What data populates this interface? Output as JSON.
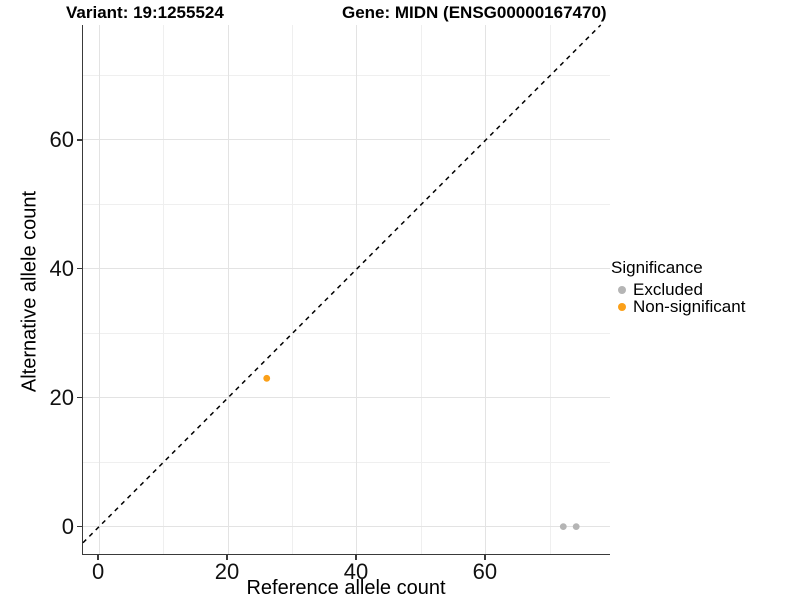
{
  "titles": {
    "variant": "Variant: 19:1255524",
    "gene": "Gene: MIDN (ENSG00000167470)"
  },
  "axes": {
    "x": {
      "label": "Reference allele count",
      "ticks": [
        0,
        20,
        40,
        60
      ],
      "major_gridlines": [
        0,
        20,
        40,
        60
      ],
      "minor_gridlines": [
        10,
        30,
        50,
        70
      ],
      "range": [
        -2.5,
        79.4
      ]
    },
    "y": {
      "label": "Alternative allele count",
      "ticks": [
        0,
        20,
        40,
        60
      ],
      "major_gridlines": [
        0,
        20,
        40,
        60
      ],
      "minor_gridlines": [
        10,
        30,
        50,
        70
      ],
      "range": [
        -4.4,
        77.8
      ]
    }
  },
  "legend": {
    "title": "Significance",
    "items": [
      {
        "label": "Excluded",
        "color": "#b5b5b5"
      },
      {
        "label": "Non-significant",
        "color": "#fba019"
      }
    ]
  },
  "chart_data": {
    "type": "scatter",
    "title": "Variant: 19:1255524 — Gene: MIDN (ENSG00000167470)",
    "xlabel": "Reference allele count",
    "ylabel": "Alternative allele count",
    "xlim": [
      -2.5,
      79.4
    ],
    "ylim": [
      -4.4,
      77.8
    ],
    "grid": true,
    "legend_position": "right",
    "series": [
      {
        "name": "Excluded",
        "color": "#b5b5b5",
        "points": [
          [
            72,
            0
          ],
          [
            74,
            0
          ]
        ]
      },
      {
        "name": "Non-significant",
        "color": "#fba019",
        "points": [
          [
            26,
            23
          ]
        ]
      }
    ],
    "reference_line": {
      "type": "identity",
      "style": "dashed",
      "color": "#000000",
      "dash": [
        4.5,
        4.5
      ],
      "width": 1.5
    }
  },
  "colors": {
    "axis_line": "#3a3a3a",
    "grid_major": "#e3e3e3",
    "grid_minor": "#efefef",
    "tick_text": "#111111",
    "title_text": "#000000"
  }
}
